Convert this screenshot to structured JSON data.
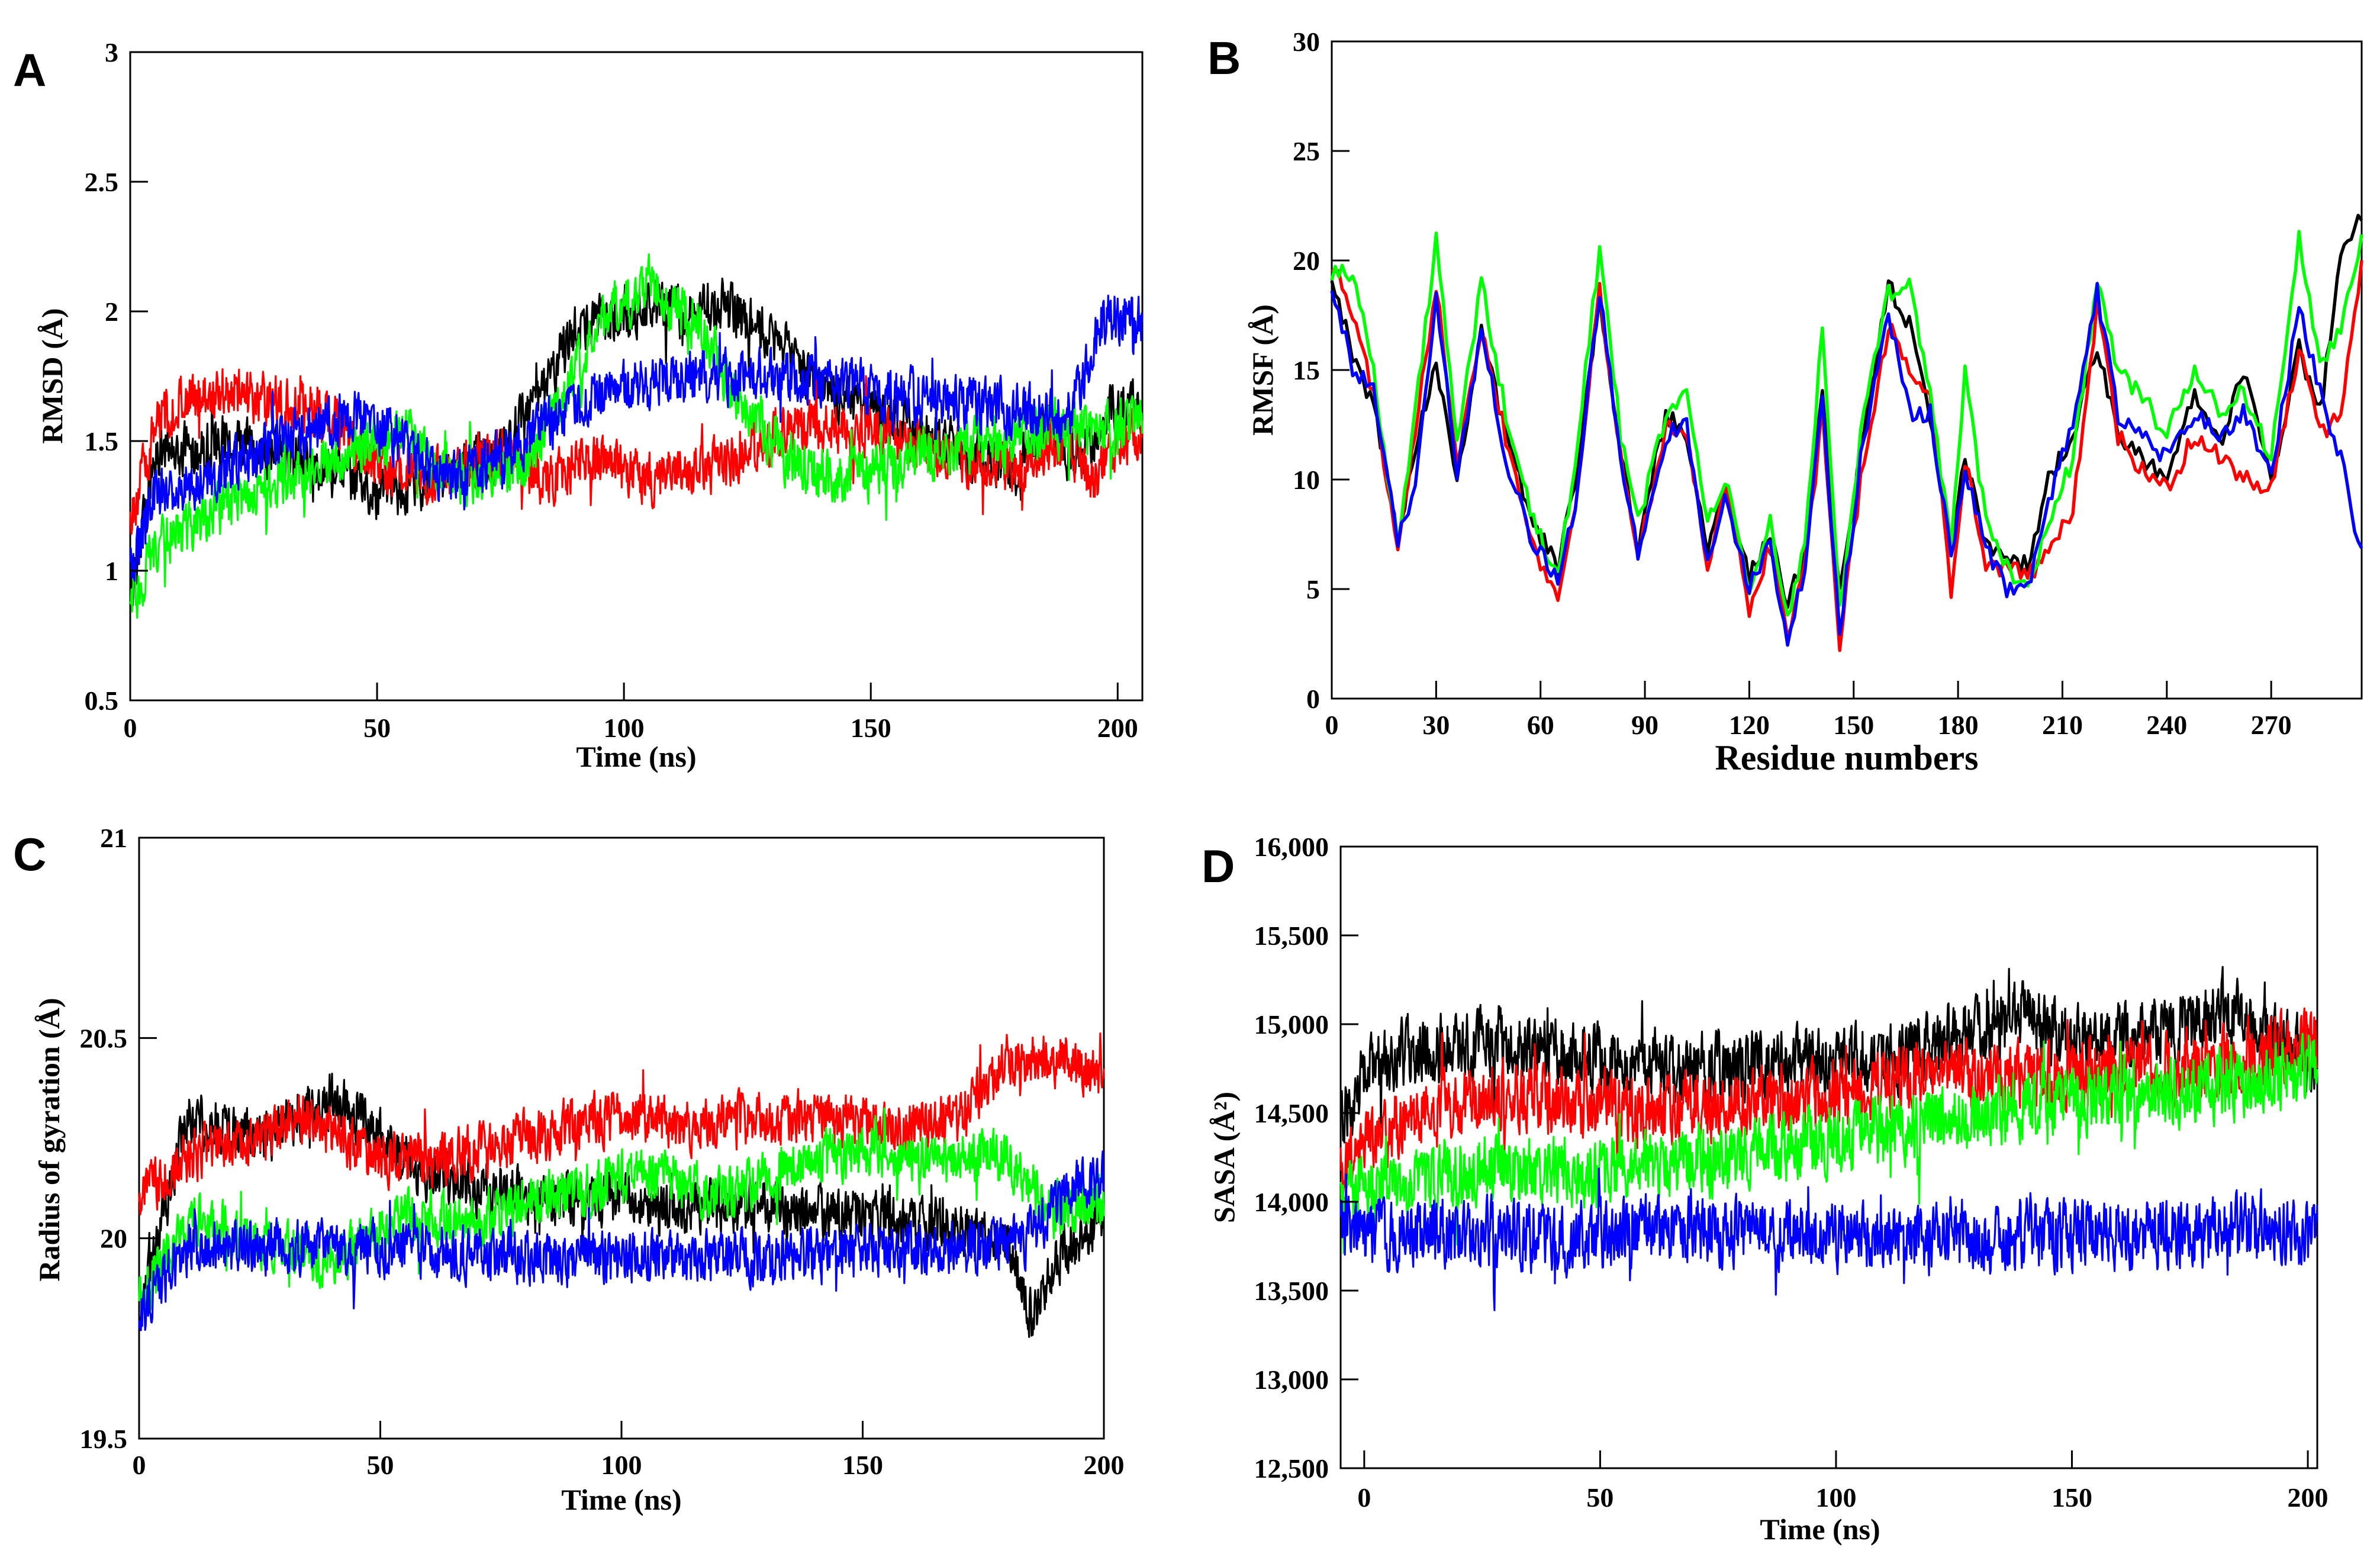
{
  "figure": {
    "colors": {
      "black": "#000000",
      "red": "#ff0000",
      "green": "#00ff00",
      "blue": "#0000ff"
    }
  },
  "chart_data": [
    {
      "panel": "A",
      "type": "line",
      "title": "",
      "xlabel": "Time (ns)",
      "ylabel": "RMSD (Å)",
      "xlim": [
        0,
        205
      ],
      "ylim": [
        0.5,
        3
      ],
      "xticks": [
        0,
        50,
        100,
        150,
        200
      ],
      "yticks": [
        0.5,
        1,
        1.5,
        2,
        2.5,
        3
      ],
      "xtick_labels": [
        "0",
        "50",
        "100",
        "150",
        "200"
      ],
      "ytick_labels": [
        "0.5",
        "1",
        "1.5",
        "2",
        "2.5",
        "3"
      ],
      "noise": 0.14,
      "series": [
        {
          "name": "black",
          "color": "#000000",
          "x": [
            0,
            5,
            20,
            40,
            50,
            60,
            75,
            85,
            90,
            100,
            110,
            120,
            130,
            140,
            150,
            160,
            170,
            180,
            185,
            190,
            195,
            200,
            205
          ],
          "y": [
            0.9,
            1.45,
            1.5,
            1.4,
            1.3,
            1.35,
            1.45,
            1.75,
            1.95,
            2.0,
            2.0,
            2.02,
            1.9,
            1.7,
            1.62,
            1.55,
            1.45,
            1.4,
            1.6,
            1.45,
            1.5,
            1.65,
            1.6
          ]
        },
        {
          "name": "red",
          "color": "#ff0000",
          "x": [
            0,
            5,
            10,
            20,
            30,
            40,
            50,
            60,
            75,
            85,
            95,
            105,
            120,
            135,
            150,
            165,
            180,
            190,
            195,
            200,
            205
          ],
          "y": [
            1.2,
            1.55,
            1.65,
            1.7,
            1.65,
            1.6,
            1.4,
            1.35,
            1.45,
            1.35,
            1.45,
            1.35,
            1.4,
            1.55,
            1.55,
            1.45,
            1.4,
            1.5,
            1.35,
            1.5,
            1.55
          ]
        },
        {
          "name": "green",
          "color": "#00ff00",
          "x": [
            0,
            5,
            15,
            30,
            45,
            55,
            65,
            80,
            95,
            105,
            115,
            125,
            135,
            145,
            160,
            175,
            190,
            200,
            205
          ],
          "y": [
            0.85,
            1.1,
            1.2,
            1.35,
            1.45,
            1.55,
            1.35,
            1.4,
            1.95,
            2.1,
            1.95,
            1.6,
            1.4,
            1.35,
            1.45,
            1.5,
            1.55,
            1.55,
            1.6
          ]
        },
        {
          "name": "blue",
          "color": "#0000ff",
          "x": [
            0,
            5,
            15,
            30,
            45,
            55,
            65,
            80,
            90,
            100,
            110,
            130,
            150,
            165,
            180,
            190,
            198,
            205
          ],
          "y": [
            1.0,
            1.3,
            1.35,
            1.5,
            1.6,
            1.5,
            1.35,
            1.5,
            1.65,
            1.7,
            1.75,
            1.75,
            1.7,
            1.65,
            1.62,
            1.6,
            2.0,
            1.95
          ]
        }
      ]
    },
    {
      "panel": "B",
      "type": "line",
      "title": "",
      "xlabel": "Residue numbers",
      "ylabel": "RMSF (Å)",
      "xlim": [
        0,
        296
      ],
      "ylim": [
        0,
        30
      ],
      "xticks": [
        0,
        30,
        60,
        90,
        120,
        150,
        180,
        210,
        240,
        270
      ],
      "yticks": [
        0,
        5,
        10,
        15,
        20,
        25,
        30
      ],
      "xtick_labels": [
        "0",
        "30",
        "60",
        "90",
        "120",
        "150",
        "180",
        "210",
        "240",
        "270"
      ],
      "ytick_labels": [
        "0",
        "5",
        "10",
        "15",
        "20",
        "25",
        "30"
      ],
      "noise": 0.45,
      "series": [
        {
          "name": "black",
          "color": "#000000",
          "x": [
            0,
            6,
            12,
            19,
            24,
            30,
            36,
            43,
            50,
            58,
            65,
            70,
            77,
            83,
            88,
            96,
            102,
            108,
            113,
            120,
            126,
            131,
            136,
            141,
            146,
            152,
            160,
            166,
            172,
            178,
            182,
            188,
            194,
            200,
            206,
            213,
            220,
            226,
            232,
            240,
            248,
            256,
            262,
            270,
            278,
            284,
            290,
            296
          ],
          "y": [
            19.5,
            15.5,
            13.5,
            7.5,
            11.5,
            15.5,
            10,
            17,
            12,
            8,
            6,
            10,
            18.5,
            11,
            7,
            13,
            12,
            7,
            10,
            5.5,
            7.5,
            4,
            7,
            14,
            5,
            11,
            19,
            17,
            13,
            6.5,
            11,
            7,
            6.5,
            6,
            10,
            12,
            16,
            12,
            11,
            10,
            14,
            12,
            15,
            10,
            16,
            13,
            20,
            22
          ]
        },
        {
          "name": "red",
          "color": "#ff0000",
          "x": [
            0,
            6,
            12,
            19,
            24,
            30,
            36,
            43,
            50,
            58,
            65,
            70,
            77,
            83,
            88,
            96,
            102,
            108,
            113,
            120,
            126,
            131,
            136,
            141,
            146,
            152,
            160,
            166,
            172,
            178,
            182,
            188,
            194,
            200,
            206,
            213,
            220,
            226,
            232,
            240,
            248,
            256,
            262,
            270,
            278,
            284,
            290,
            296
          ],
          "y": [
            20,
            17.5,
            14,
            6.5,
            12,
            19,
            11,
            17,
            12,
            7,
            4.5,
            9,
            18.5,
            11,
            6.5,
            12.5,
            12,
            6,
            10,
            4,
            7,
            3,
            6,
            13,
            2.5,
            10,
            17,
            15,
            14,
            5,
            11,
            6,
            6,
            5.5,
            7,
            8.5,
            18,
            12,
            10.5,
            9.5,
            12,
            11,
            10,
            9.5,
            16,
            12,
            13,
            20
          ]
        },
        {
          "name": "green",
          "color": "#00ff00",
          "x": [
            0,
            6,
            12,
            19,
            24,
            30,
            36,
            43,
            50,
            58,
            65,
            70,
            77,
            83,
            88,
            96,
            102,
            108,
            113,
            120,
            126,
            131,
            136,
            141,
            146,
            152,
            160,
            166,
            172,
            178,
            182,
            188,
            194,
            200,
            206,
            213,
            220,
            226,
            232,
            240,
            248,
            256,
            262,
            270,
            278,
            284,
            290,
            296
          ],
          "y": [
            19.5,
            19.5,
            15,
            7,
            13,
            21,
            11.5,
            19,
            13,
            8,
            5.5,
            11,
            20.5,
            12,
            8,
            13,
            14,
            8,
            10,
            5,
            8,
            3.5,
            7,
            17,
            4,
            12,
            18.5,
            19,
            14,
            7,
            15,
            8,
            6,
            5,
            8,
            11,
            19,
            15,
            14,
            12,
            15,
            13,
            14,
            11,
            21,
            15,
            17,
            21
          ]
        },
        {
          "name": "blue",
          "color": "#0000ff",
          "x": [
            0,
            6,
            12,
            19,
            24,
            30,
            36,
            43,
            50,
            58,
            65,
            70,
            77,
            83,
            88,
            96,
            102,
            108,
            113,
            120,
            126,
            131,
            136,
            141,
            146,
            152,
            160,
            166,
            172,
            178,
            182,
            188,
            194,
            200,
            206,
            213,
            220,
            226,
            232,
            240,
            248,
            256,
            262,
            270,
            278,
            284,
            290,
            296
          ],
          "y": [
            19,
            15,
            14,
            7,
            10,
            18.5,
            10,
            17,
            11,
            7,
            5.5,
            9,
            18.5,
            11,
            6.5,
            12,
            12.5,
            6,
            9.5,
            5,
            7,
            2.5,
            6,
            13.5,
            3,
            11,
            17.5,
            13,
            13,
            6.5,
            10.5,
            7,
            5,
            5,
            9,
            12.5,
            18.5,
            13,
            12,
            11,
            13,
            12,
            13,
            10,
            18,
            14,
            11,
            6.5
          ]
        }
      ]
    },
    {
      "panel": "C",
      "type": "line",
      "title": "",
      "xlabel": "Time (ns)",
      "ylabel": "Radius of gyration (Å)",
      "xlim": [
        0,
        200
      ],
      "ylim": [
        19.5,
        21
      ],
      "xticks": [
        0,
        50,
        100,
        150,
        200
      ],
      "yticks": [
        19.5,
        20,
        20.5,
        21
      ],
      "xtick_labels": [
        "0",
        "50",
        "100",
        "150",
        "200"
      ],
      "ytick_labels": [
        "19.5",
        "20",
        "20.5",
        "21"
      ],
      "noise": 0.09,
      "series": [
        {
          "name": "black",
          "color": "#000000",
          "x": [
            0,
            10,
            25,
            40,
            50,
            60,
            75,
            90,
            110,
            130,
            150,
            170,
            180,
            185,
            190,
            200
          ],
          "y": [
            19.8,
            20.3,
            20.25,
            20.35,
            20.25,
            20.15,
            20.12,
            20.1,
            20.08,
            20.08,
            20.05,
            20.02,
            20.0,
            19.8,
            19.95,
            20.05
          ]
        },
        {
          "name": "red",
          "color": "#ff0000",
          "x": [
            0,
            10,
            25,
            35,
            50,
            65,
            80,
            95,
            105,
            115,
            130,
            145,
            160,
            170,
            180,
            190,
            200
          ],
          "y": [
            20.1,
            20.2,
            20.25,
            20.3,
            20.2,
            20.2,
            20.25,
            20.3,
            20.3,
            20.28,
            20.3,
            20.3,
            20.28,
            20.3,
            20.45,
            20.45,
            20.4
          ]
        },
        {
          "name": "green",
          "color": "#00ff00",
          "x": [
            0,
            10,
            25,
            40,
            55,
            70,
            85,
            100,
            110,
            120,
            135,
            150,
            165,
            180,
            190,
            200
          ],
          "y": [
            19.85,
            20.05,
            20.0,
            19.95,
            20.05,
            20.05,
            20.1,
            20.15,
            20.15,
            20.1,
            20.18,
            20.22,
            20.2,
            20.2,
            20.05,
            20.1
          ]
        },
        {
          "name": "blue",
          "color": "#0000ff",
          "x": [
            0,
            10,
            30,
            50,
            70,
            90,
            110,
            130,
            150,
            170,
            185,
            195,
            200
          ],
          "y": [
            19.8,
            19.98,
            19.98,
            19.97,
            19.96,
            19.95,
            19.95,
            19.95,
            19.97,
            19.98,
            20.0,
            20.15,
            20.15
          ]
        }
      ]
    },
    {
      "panel": "D",
      "type": "line",
      "title": "",
      "xlabel": "Time (ns)",
      "ylabel": "SASA (Å²)",
      "xlim": [
        -5,
        202
      ],
      "ylim": [
        12500,
        16000
      ],
      "xticks": [
        0,
        50,
        100,
        150,
        200
      ],
      "yticks": [
        12500,
        13000,
        13500,
        14000,
        14500,
        15000,
        15500,
        16000
      ],
      "xtick_labels": [
        "0",
        "50",
        "100",
        "150",
        "200"
      ],
      "ytick_labels": [
        "12,500",
        "13,000",
        "13,500",
        "14,000",
        "14,500",
        "15,000",
        "15,500",
        "16,000"
      ],
      "noise": 260,
      "series": [
        {
          "name": "black",
          "color": "#000000",
          "x": [
            -5,
            0,
            10,
            30,
            50,
            70,
            90,
            110,
            130,
            140,
            150,
            170,
            182,
            190,
            202
          ],
          "y": [
            14400,
            14700,
            14850,
            14900,
            14800,
            14750,
            14800,
            14800,
            14950,
            15050,
            14900,
            14950,
            15100,
            14950,
            14800
          ]
        },
        {
          "name": "red",
          "color": "#ff0000",
          "x": [
            -5,
            10,
            30,
            50,
            75,
            100,
            120,
            140,
            160,
            180,
            195,
            202
          ],
          "y": [
            14200,
            14500,
            14600,
            14550,
            14500,
            14600,
            14700,
            14700,
            14750,
            14800,
            14850,
            14900
          ]
        },
        {
          "name": "green",
          "color": "#00ff00",
          "x": [
            -5,
            10,
            30,
            50,
            75,
            100,
            120,
            140,
            160,
            180,
            195,
            202
          ],
          "y": [
            14000,
            14150,
            14200,
            14150,
            14250,
            14350,
            14450,
            14550,
            14600,
            14650,
            14700,
            14750
          ]
        },
        {
          "name": "blue",
          "color": "#0000ff",
          "x": [
            -5,
            10,
            40,
            70,
            100,
            130,
            160,
            190,
            202
          ],
          "y": [
            13800,
            13850,
            13800,
            13850,
            13800,
            13800,
            13820,
            13850,
            13800
          ]
        }
      ]
    }
  ]
}
